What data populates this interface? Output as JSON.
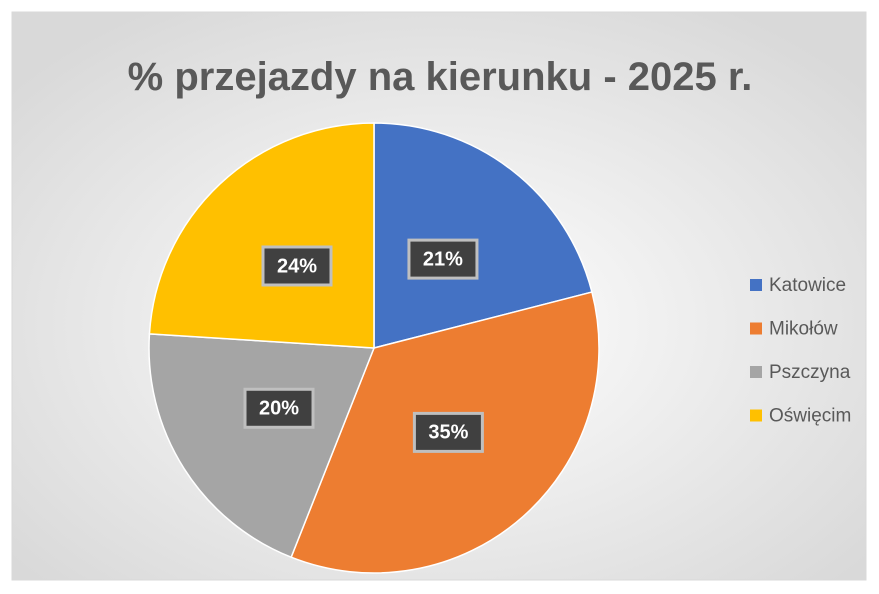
{
  "chart_data": {
    "type": "pie",
    "title": "% przejazdy na kierunku - 2025 r.",
    "categories": [
      "Katowice",
      "Mikołów",
      "Pszczyna",
      "Oświęcim"
    ],
    "values": [
      21,
      35,
      20,
      24
    ],
    "value_labels": [
      "21%",
      "35%",
      "20%",
      "24%"
    ],
    "colors": [
      "#4472c4",
      "#ed7d31",
      "#a5a5a5",
      "#ffc000"
    ],
    "legend": "right"
  }
}
